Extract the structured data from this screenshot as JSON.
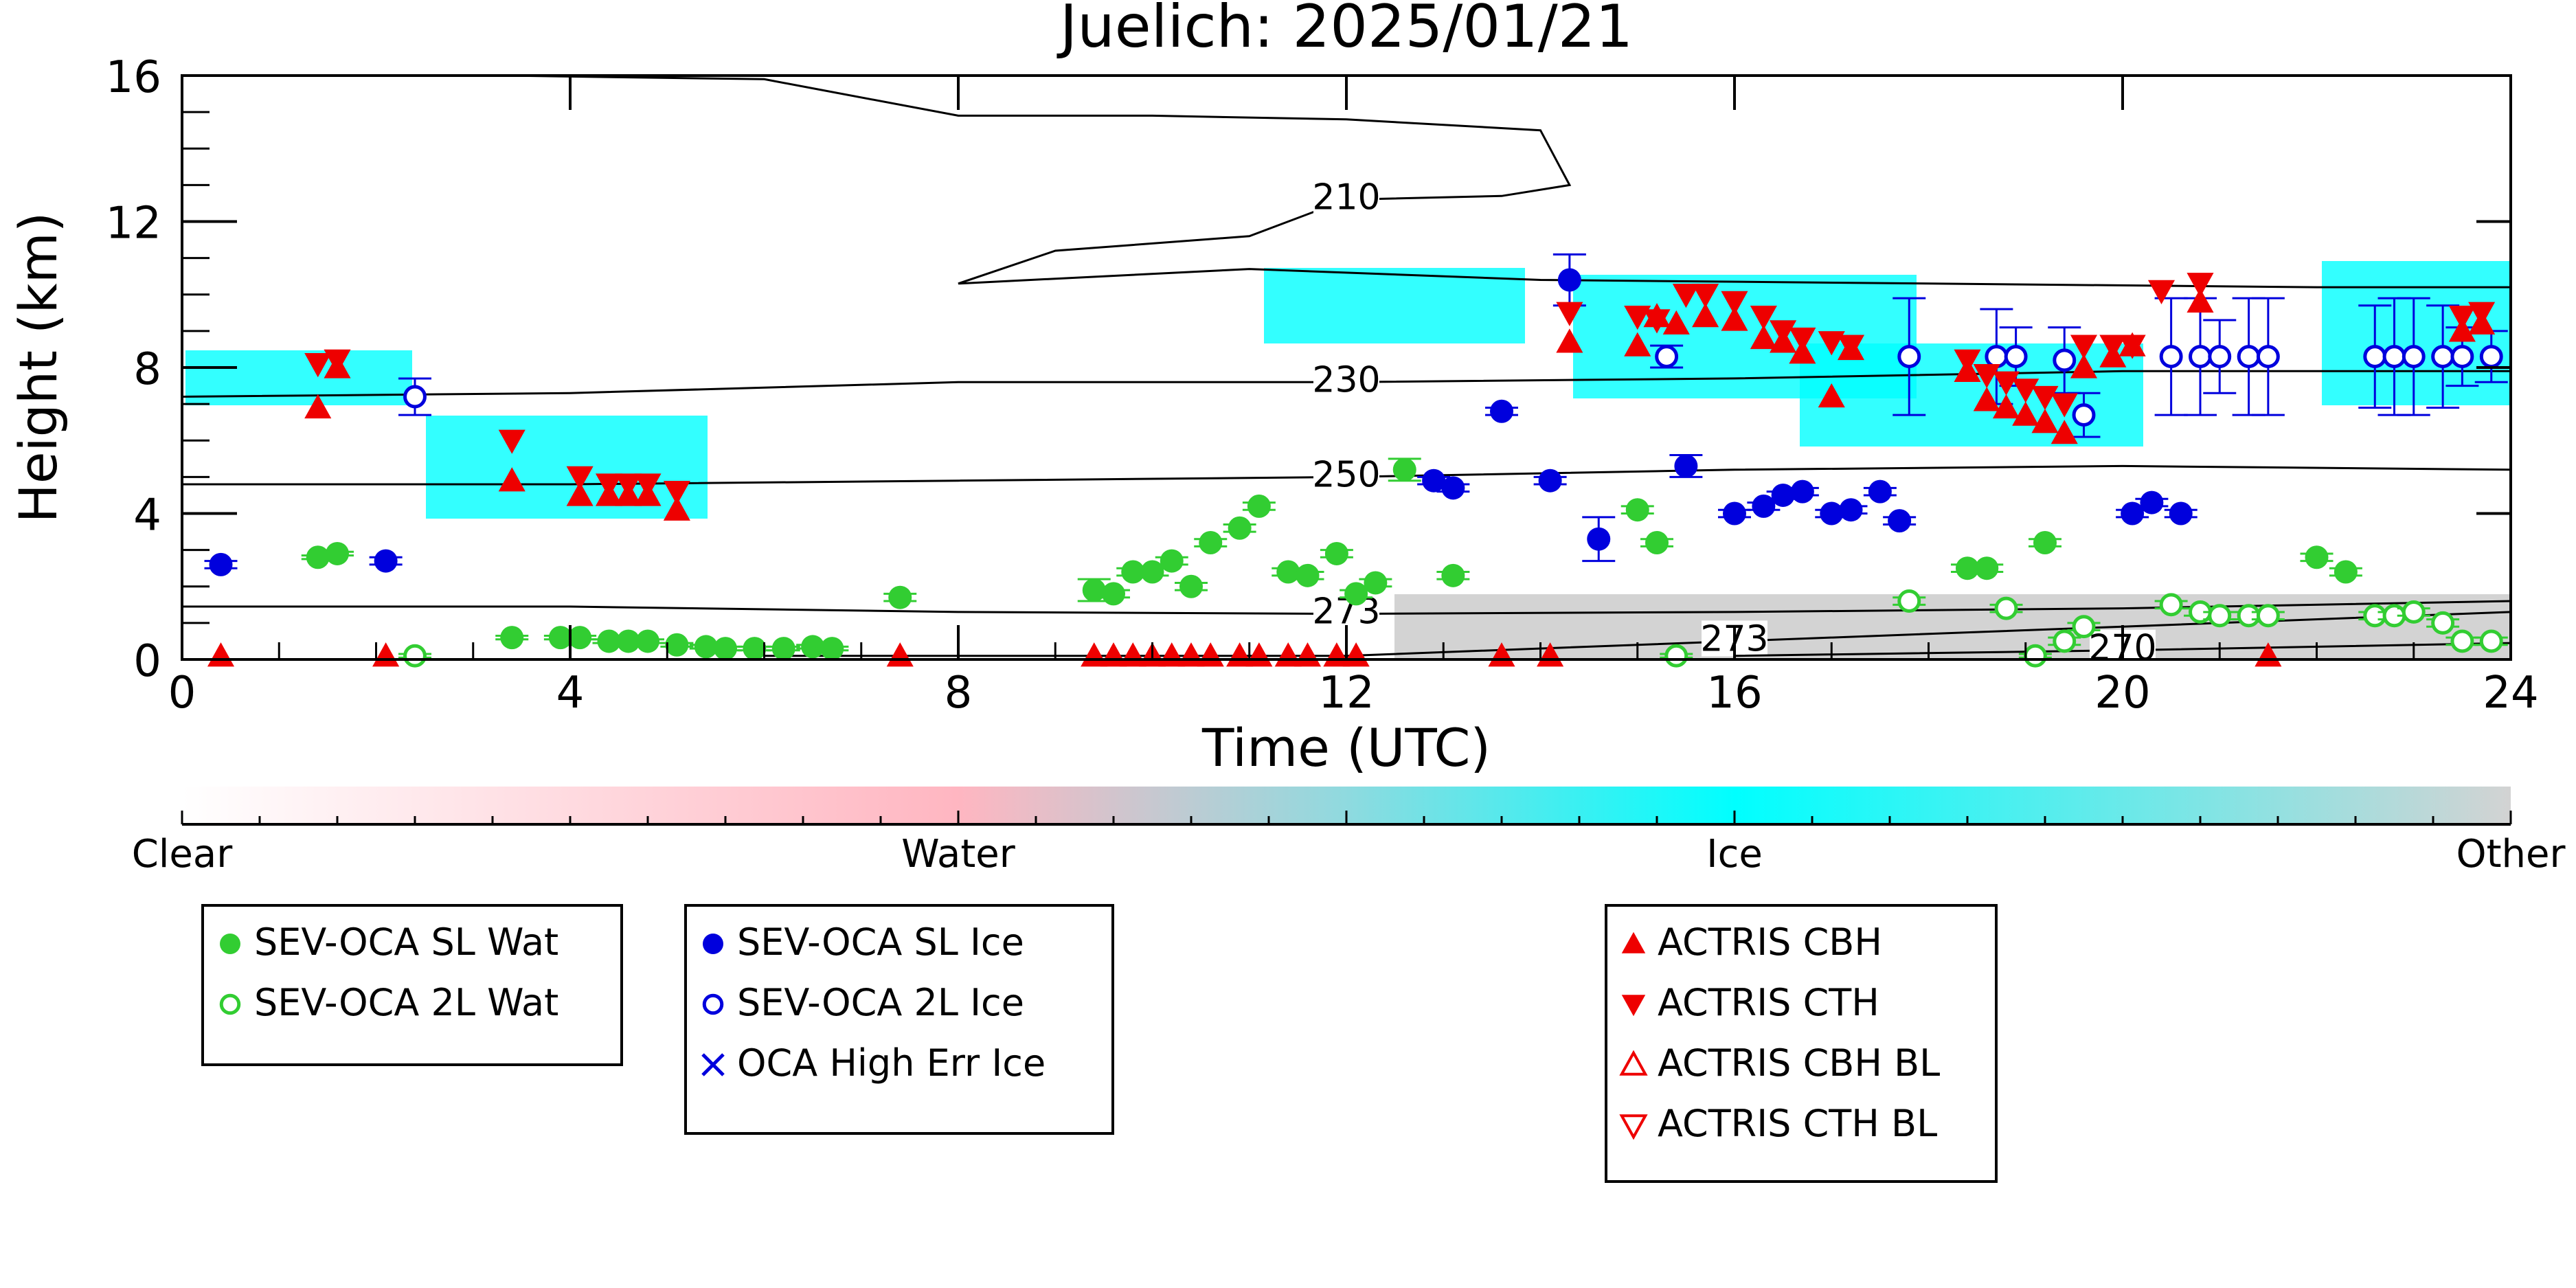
{
  "chart_data": {
    "type": "scatter",
    "title": "Juelich: 2025/01/21",
    "xlabel": "Time (UTC)",
    "ylabel": "Height (km)",
    "xlim": [
      0,
      24
    ],
    "ylim": [
      0,
      16
    ],
    "xticks": [
      0,
      4,
      8,
      12,
      16,
      20,
      24
    ],
    "yticks": [
      0,
      4,
      8,
      12,
      16
    ],
    "contours": [
      {
        "label": "210",
        "points": [
          [
            3.3,
            16
          ],
          [
            6,
            15.9
          ],
          [
            8,
            14.9
          ],
          [
            10,
            14.9
          ],
          [
            12,
            14.8
          ],
          [
            14,
            14.5
          ],
          [
            14.3,
            13.0
          ],
          [
            13.6,
            12.7
          ],
          [
            12,
            12.6
          ],
          [
            11,
            11.6
          ],
          [
            9,
            11.2
          ],
          [
            8,
            10.3
          ],
          [
            11,
            10.7
          ],
          [
            14,
            10.4
          ],
          [
            18,
            10.3
          ],
          [
            22,
            10.2
          ],
          [
            24,
            10.2
          ]
        ]
      },
      {
        "label": "230",
        "points": [
          [
            0,
            7.2
          ],
          [
            4,
            7.3
          ],
          [
            8,
            7.6
          ],
          [
            12,
            7.6
          ],
          [
            16,
            7.7
          ],
          [
            20,
            7.9
          ],
          [
            24,
            7.9
          ]
        ]
      },
      {
        "label": "250",
        "points": [
          [
            0,
            4.8
          ],
          [
            4,
            4.8
          ],
          [
            8,
            4.9
          ],
          [
            12,
            5.0
          ],
          [
            16,
            5.2
          ],
          [
            20,
            5.3
          ],
          [
            24,
            5.2
          ]
        ]
      },
      {
        "label": "273",
        "points": [
          [
            0,
            1.45
          ],
          [
            4,
            1.45
          ],
          [
            8,
            1.3
          ],
          [
            12,
            1.25
          ],
          [
            16,
            1.3
          ],
          [
            20,
            1.4
          ],
          [
            24,
            1.6
          ]
        ]
      },
      {
        "label": "273",
        "points": [
          [
            6,
            0.1
          ],
          [
            9,
            0.1
          ],
          [
            12,
            0.1
          ],
          [
            16,
            0.5
          ],
          [
            20,
            0.9
          ],
          [
            24,
            1.3
          ]
        ]
      },
      {
        "label": "270",
        "points": [
          [
            16,
            0.1
          ],
          [
            20,
            0.25
          ],
          [
            24,
            0.45
          ]
        ]
      }
    ],
    "colorbar": {
      "labels": [
        "Clear",
        "Water",
        "Ice",
        "Other"
      ],
      "colors": [
        "#ffffff",
        "#ffb6c1",
        "#00ffff",
        "#d3d3d3"
      ]
    },
    "series": [
      {
        "name": "SEV-OCA SL Wat",
        "color": "#32cd32",
        "marker": "circle-filled",
        "x": [
          1.4,
          1.6,
          3.4,
          3.9,
          4.1,
          4.4,
          4.6,
          4.8,
          5.1,
          5.4,
          5.6,
          5.9,
          6.2,
          6.5,
          6.7,
          7.4,
          9.4,
          9.6,
          9.8,
          10.0,
          10.2,
          10.4,
          10.6,
          10.9,
          11.1,
          11.4,
          11.6,
          11.9,
          12.1,
          12.3,
          12.6,
          13.1,
          15.0,
          15.2,
          18.4,
          18.6,
          19.2,
          22.0,
          22.3
        ],
        "y": [
          2.8,
          2.9,
          0.6,
          0.6,
          0.6,
          0.5,
          0.5,
          0.5,
          0.4,
          0.35,
          0.3,
          0.3,
          0.3,
          0.35,
          0.3,
          1.7,
          1.9,
          1.8,
          2.4,
          2.4,
          2.7,
          2.0,
          3.2,
          3.6,
          4.2,
          2.4,
          2.3,
          2.9,
          1.8,
          2.1,
          5.2,
          2.3,
          4.1,
          3.2,
          2.5,
          2.5,
          3.2,
          2.8,
          2.4
        ],
        "yerr": [
          0.05,
          0.05,
          0.05,
          0.05,
          0.05,
          0.05,
          0.05,
          0.05,
          0.05,
          0.05,
          0.05,
          0.05,
          0.05,
          0.05,
          0.05,
          0.1,
          0.3,
          0.1,
          0.1,
          0.1,
          0.1,
          0.1,
          0.1,
          0.1,
          0.1,
          0.1,
          0.1,
          0.1,
          0.1,
          0.1,
          0.3,
          0.1,
          0.1,
          0.1,
          0.1,
          0.1,
          0.1,
          0.1,
          0.1
        ]
      },
      {
        "name": "SEV-OCA 2L Wat",
        "color": "#32cd32",
        "marker": "circle-open",
        "x": [
          2.4,
          15.4,
          17.8,
          18.8,
          19.1,
          19.4,
          19.6,
          20.5,
          20.8,
          21.0,
          21.3,
          21.5,
          22.6,
          22.8,
          23.0,
          23.3,
          23.5,
          23.8
        ],
        "y": [
          0.1,
          0.1,
          1.6,
          1.4,
          0.1,
          0.5,
          0.9,
          1.5,
          1.3,
          1.2,
          1.2,
          1.2,
          1.2,
          1.2,
          1.3,
          1.0,
          0.5,
          0.5
        ],
        "yerr": [
          0.05,
          0.05,
          0.1,
          0.1,
          0.05,
          0.1,
          0.1,
          0.1,
          0.1,
          0.1,
          0.1,
          0.1,
          0.1,
          0.1,
          0.1,
          0.1,
          0.1,
          0.1
        ]
      },
      {
        "name": "SEV-OCA SL Ice",
        "color": "#0000dd",
        "marker": "circle-filled",
        "x": [
          0.4,
          2.1,
          12.9,
          13.1,
          13.6,
          14.1,
          14.3,
          14.6,
          15.5,
          16.0,
          16.3,
          16.5,
          16.7,
          17.0,
          17.2,
          17.5,
          17.7,
          20.1,
          20.3,
          20.6
        ],
        "y": [
          2.6,
          2.7,
          4.9,
          4.7,
          6.8,
          4.9,
          10.4,
          3.3,
          5.3,
          4.0,
          4.2,
          4.5,
          4.6,
          4.0,
          4.1,
          4.6,
          3.8,
          4.0,
          4.3,
          4.0
        ],
        "yerr": [
          0.1,
          0.1,
          0.1,
          0.1,
          0.1,
          0.1,
          0.7,
          0.6,
          0.3,
          0.1,
          0.1,
          0.1,
          0.1,
          0.1,
          0.1,
          0.1,
          0.1,
          0.1,
          0.1,
          0.1
        ]
      },
      {
        "name": "SEV-OCA 2L Ice",
        "color": "#0000dd",
        "marker": "circle-open",
        "x": [
          2.4,
          15.3,
          17.8,
          18.7,
          18.9,
          19.4,
          19.6,
          20.5,
          20.8,
          21.0,
          21.3,
          21.5,
          22.6,
          22.8,
          23.0,
          23.3,
          23.5,
          23.8
        ],
        "y": [
          7.2,
          8.3,
          8.3,
          8.3,
          8.3,
          8.2,
          6.7,
          8.3,
          8.3,
          8.3,
          8.3,
          8.3,
          8.3,
          8.3,
          8.3,
          8.3,
          8.3,
          8.3
        ],
        "yerr": [
          0.5,
          0.3,
          1.6,
          1.3,
          0.8,
          0.9,
          0.6,
          1.6,
          1.6,
          1.0,
          1.6,
          1.6,
          1.4,
          1.6,
          1.6,
          1.4,
          0.8,
          0.7
        ]
      },
      {
        "name": "OCA High Err Ice",
        "color": "#0000dd",
        "marker": "x",
        "x": [],
        "y": []
      },
      {
        "name": "ACTRIS CBH",
        "color": "#ee0000",
        "marker": "triangle-up-filled",
        "x": [
          0.4,
          1.4,
          1.6,
          2.1,
          3.4,
          4.1,
          4.4,
          4.6,
          4.8,
          5.1,
          7.4,
          9.4,
          9.6,
          9.8,
          10.0,
          10.2,
          10.4,
          10.6,
          10.9,
          11.1,
          11.4,
          11.6,
          11.9,
          12.1,
          13.6,
          14.1,
          14.3,
          15.0,
          15.2,
          15.4,
          15.7,
          16.0,
          16.3,
          16.5,
          16.7,
          17.0,
          17.2,
          18.4,
          18.6,
          18.8,
          19.0,
          19.2,
          19.4,
          19.6,
          19.9,
          20.1,
          20.8,
          21.5,
          23.5,
          23.7
        ],
        "y": [
          0.1,
          6.9,
          8.0,
          0.1,
          4.9,
          4.5,
          4.5,
          4.5,
          4.5,
          4.1,
          0.1,
          0.1,
          0.1,
          0.1,
          0.1,
          0.1,
          0.1,
          0.1,
          0.1,
          0.1,
          0.1,
          0.1,
          0.1,
          0.1,
          0.1,
          0.1,
          8.7,
          8.6,
          9.4,
          9.2,
          9.4,
          9.3,
          8.8,
          8.7,
          8.4,
          7.2,
          8.5,
          7.9,
          7.1,
          6.9,
          6.7,
          6.5,
          6.2,
          8.0,
          8.3,
          8.6,
          9.8,
          0.1,
          9.0,
          9.2
        ]
      },
      {
        "name": "ACTRIS CTH",
        "color": "#ee0000",
        "marker": "triangle-down-filled",
        "x": [
          1.4,
          1.6,
          3.4,
          4.1,
          4.4,
          4.6,
          4.8,
          5.1,
          14.3,
          15.0,
          15.2,
          15.5,
          15.7,
          16.0,
          16.3,
          16.5,
          16.7,
          17.0,
          17.2,
          18.4,
          18.6,
          18.8,
          19.0,
          19.2,
          19.4,
          19.6,
          19.9,
          20.1,
          20.4,
          20.8,
          23.5,
          23.7
        ],
        "y": [
          8.1,
          8.2,
          6.0,
          5.0,
          4.8,
          4.8,
          4.8,
          4.6,
          9.5,
          9.4,
          9.3,
          10.0,
          10.0,
          9.8,
          9.4,
          9.0,
          8.8,
          8.7,
          8.6,
          8.2,
          7.8,
          7.6,
          7.4,
          7.2,
          7.0,
          8.6,
          8.6,
          8.6,
          10.1,
          10.3,
          9.4,
          9.5
        ]
      },
      {
        "name": "ACTRIS CBH BL",
        "color": "#ee0000",
        "marker": "triangle-up-open",
        "x": [],
        "y": []
      },
      {
        "name": "ACTRIS CTH BL",
        "color": "#ee0000",
        "marker": "triangle-down-open",
        "x": [],
        "y": []
      }
    ],
    "legend_groups": [
      [
        "SEV-OCA SL Wat",
        "SEV-OCA 2L Wat"
      ],
      [
        "SEV-OCA SL Ice",
        "SEV-OCA 2L Ice",
        "OCA High Err Ice"
      ],
      [
        "ACTRIS CBH",
        "ACTRIS CTH",
        "ACTRIS CBH BL",
        "ACTRIS CTH BL"
      ]
    ],
    "legend_placement": "below",
    "grid": false
  }
}
